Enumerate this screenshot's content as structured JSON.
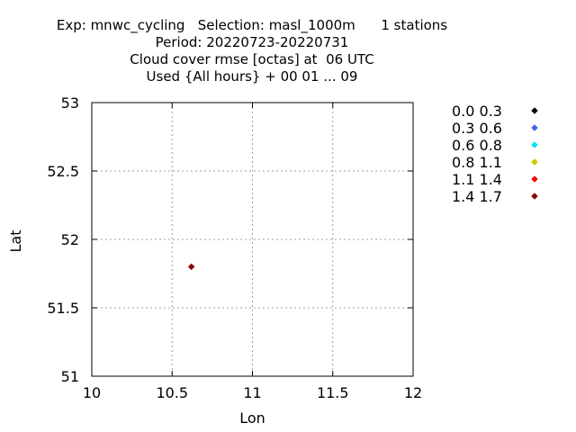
{
  "header": {
    "lines": [
      "Exp: mnwc_cycling   Selection: masl_1000m      1 stations",
      "Period: 20220723-20220731",
      "Cloud cover rmse [octas] at  06 UTC",
      "Used {All hours} + 00 01 ... 09"
    ]
  },
  "chart_data": {
    "type": "scatter",
    "xlabel": "Lon",
    "ylabel": "Lat",
    "xlim": [
      10,
      12
    ],
    "ylim": [
      51,
      53
    ],
    "xticks": [
      10,
      10.5,
      11,
      11.5,
      12
    ],
    "yticks": [
      51,
      51.5,
      52,
      52.5,
      53
    ],
    "xtick_labels": [
      "10",
      "10.5",
      "11",
      "11.5",
      "12"
    ],
    "ytick_labels": [
      "51",
      "51.5",
      "52",
      "52.5",
      "53"
    ],
    "grid": true,
    "legend_position": "right",
    "series": [
      {
        "name": "0.0 0.3",
        "color": "#000000",
        "points": []
      },
      {
        "name": "0.3 0.6",
        "color": "#4169e1",
        "points": []
      },
      {
        "name": "0.6 0.8",
        "color": "#00e5ee",
        "points": []
      },
      {
        "name": "0.8 1.1",
        "color": "#c8c800",
        "points": []
      },
      {
        "name": "1.1 1.4",
        "color": "#ff0000",
        "points": []
      },
      {
        "name": "1.4 1.7",
        "color": "#8b0000",
        "points": [
          {
            "x": 10.62,
            "y": 51.8
          }
        ]
      }
    ]
  }
}
